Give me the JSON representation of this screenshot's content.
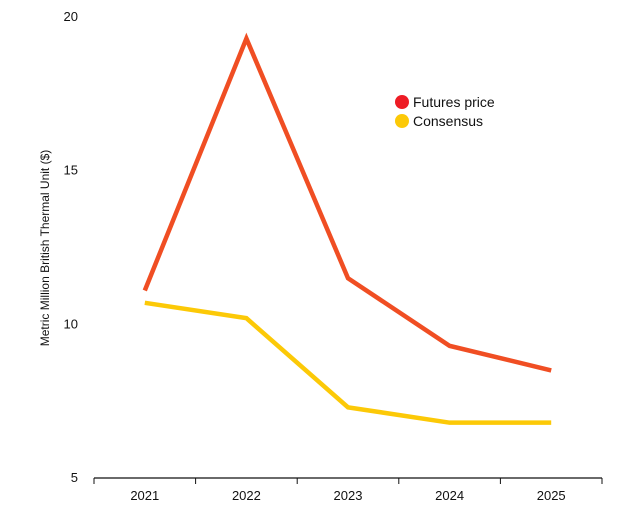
{
  "chart_data": {
    "type": "line",
    "title": "",
    "xlabel": "",
    "ylabel": "Metric Million British Thermal Unit ($)",
    "categories": [
      "2021",
      "2022",
      "2023",
      "2024",
      "2025"
    ],
    "ylim": [
      5,
      20
    ],
    "yticks": [
      "5",
      "10",
      "15",
      "20"
    ],
    "grid": false,
    "legend_position": "top-right",
    "series": [
      {
        "name": "Futures price",
        "values": [
          11.1,
          19.3,
          11.5,
          9.3,
          8.5
        ],
        "color": "#f04e23",
        "marker_color": "#ee1c25"
      },
      {
        "name": "Consensus",
        "values": [
          10.7,
          10.2,
          7.3,
          6.8,
          6.8
        ],
        "color": "#fcc907",
        "marker_color": "#fcc907"
      }
    ]
  }
}
